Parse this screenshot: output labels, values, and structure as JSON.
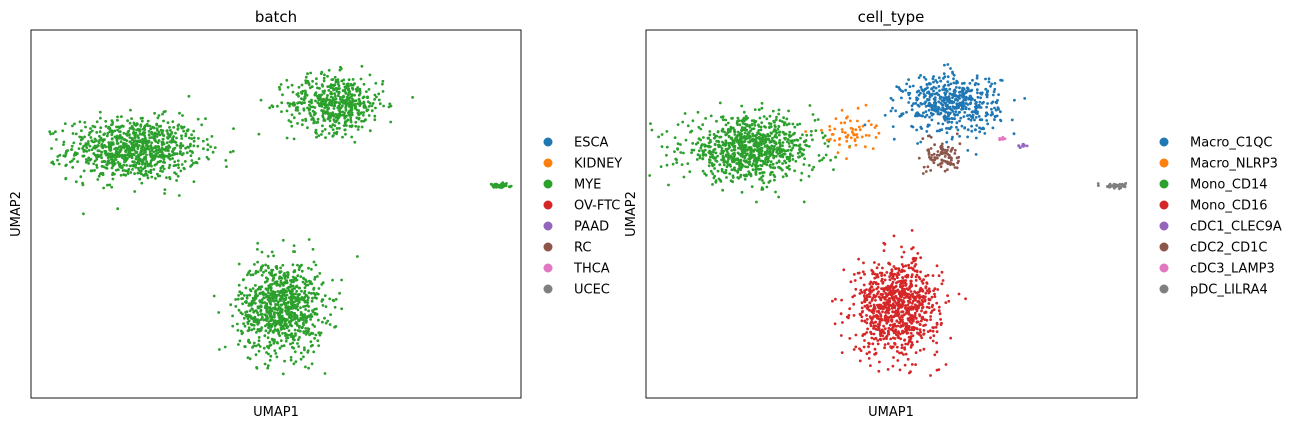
{
  "chart_data": [
    {
      "type": "scatter",
      "title": "batch",
      "xlabel": "UMAP1",
      "ylabel": "UMAP2",
      "grid": false,
      "legend_position": "right",
      "legend": [
        {
          "label": "ESCA",
          "color": "#1f77b4"
        },
        {
          "label": "KIDNEY",
          "color": "#ff7f0e"
        },
        {
          "label": "MYE",
          "color": "#2ca02c"
        },
        {
          "label": "OV-FTC",
          "color": "#d62728"
        },
        {
          "label": "PAAD",
          "color": "#9467bd"
        },
        {
          "label": "RC",
          "color": "#8c564b"
        },
        {
          "label": "THCA",
          "color": "#e377c2"
        },
        {
          "label": "UCEC",
          "color": "#7f7f7f"
        }
      ],
      "clusters": [
        {
          "category": "MYE",
          "center": [
            -4.2,
            3.2
          ],
          "spread": [
            2.2,
            1.6
          ],
          "count": 900
        },
        {
          "category": "MYE",
          "center": [
            3.2,
            5.8
          ],
          "spread": [
            1.6,
            1.5
          ],
          "count": 520
        },
        {
          "category": "MYE",
          "center": [
            1.2,
            -5.8
          ],
          "spread": [
            1.4,
            2.4
          ],
          "count": 900
        },
        {
          "category": "MYE",
          "center": [
            9.2,
            1.1
          ],
          "spread": [
            0.35,
            0.12
          ],
          "count": 45
        }
      ]
    },
    {
      "type": "scatter",
      "title": "cell_type",
      "xlabel": "UMAP1",
      "ylabel": "UMAP2",
      "grid": false,
      "legend_position": "right",
      "legend": [
        {
          "label": "Macro_C1QC",
          "color": "#1f77b4"
        },
        {
          "label": "Macro_NLRP3",
          "color": "#ff7f0e"
        },
        {
          "label": "Mono_CD14",
          "color": "#2ca02c"
        },
        {
          "label": "Mono_CD16",
          "color": "#d62728"
        },
        {
          "label": "cDC1_CLEC9A",
          "color": "#9467bd"
        },
        {
          "label": "cDC2_CD1C",
          "color": "#8c564b"
        },
        {
          "label": "cDC3_LAMP3",
          "color": "#e377c2"
        },
        {
          "label": "pDC_LILRA4",
          "color": "#7f7f7f"
        }
      ],
      "clusters": [
        {
          "category": "Mono_CD14",
          "center": [
            -4.2,
            3.2
          ],
          "spread": [
            2.2,
            1.6
          ],
          "count": 900
        },
        {
          "category": "Macro_C1QC",
          "center": [
            3.2,
            5.8
          ],
          "spread": [
            1.6,
            1.5
          ],
          "count": 520
        },
        {
          "category": "Mono_CD16",
          "center": [
            1.2,
            -5.8
          ],
          "spread": [
            1.4,
            2.4
          ],
          "count": 900
        },
        {
          "category": "Macro_NLRP3",
          "center": [
            -0.6,
            4.2
          ],
          "spread": [
            0.9,
            1.0
          ],
          "count": 60
        },
        {
          "category": "cDC2_CD1C",
          "center": [
            2.9,
            2.8
          ],
          "spread": [
            0.55,
            0.9
          ],
          "count": 90
        },
        {
          "category": "cDC1_CLEC9A",
          "center": [
            5.8,
            3.4
          ],
          "spread": [
            0.2,
            0.1
          ],
          "count": 12
        },
        {
          "category": "cDC3_LAMP3",
          "center": [
            5.1,
            3.8
          ],
          "spread": [
            0.2,
            0.1
          ],
          "count": 6
        },
        {
          "category": "pDC_LILRA4",
          "center": [
            9.2,
            1.1
          ],
          "spread": [
            0.35,
            0.12
          ],
          "count": 45
        }
      ],
      "xlim": [
        -8,
        10
      ],
      "ylim": [
        -11,
        10
      ]
    }
  ]
}
